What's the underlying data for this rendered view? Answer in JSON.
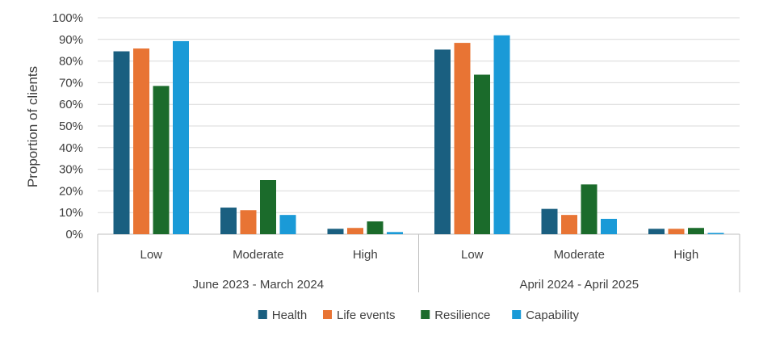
{
  "chart_data": {
    "type": "bar",
    "ylabel": "Proportion of clients",
    "ylim": [
      0,
      100
    ],
    "yticks": [
      "0%",
      "10%",
      "20%",
      "30%",
      "40%",
      "50%",
      "60%",
      "70%",
      "80%",
      "90%",
      "100%"
    ],
    "grid": true,
    "legend_position": "bottom",
    "groups": [
      {
        "label": "June 2023 - March 2024",
        "categories": [
          "Low",
          "Moderate",
          "High"
        ]
      },
      {
        "label": "April 2024 - April 2025",
        "categories": [
          "Low",
          "Moderate",
          "High"
        ]
      }
    ],
    "series": [
      {
        "name": "Health",
        "color": "#1a5f80",
        "values": [
          84.5,
          12.3,
          2.5,
          85.3,
          11.7,
          2.5
        ]
      },
      {
        "name": "Life events",
        "color": "#e87434",
        "values": [
          85.8,
          11.1,
          2.9,
          88.4,
          8.9,
          2.5
        ]
      },
      {
        "name": "Resilience",
        "color": "#1b6b2b",
        "values": [
          68.5,
          25.0,
          5.9,
          73.7,
          23.0,
          2.9
        ]
      },
      {
        "name": "Capability",
        "color": "#1a9ad7",
        "values": [
          89.2,
          8.9,
          1.0,
          91.9,
          7.1,
          0.6
        ]
      }
    ]
  }
}
